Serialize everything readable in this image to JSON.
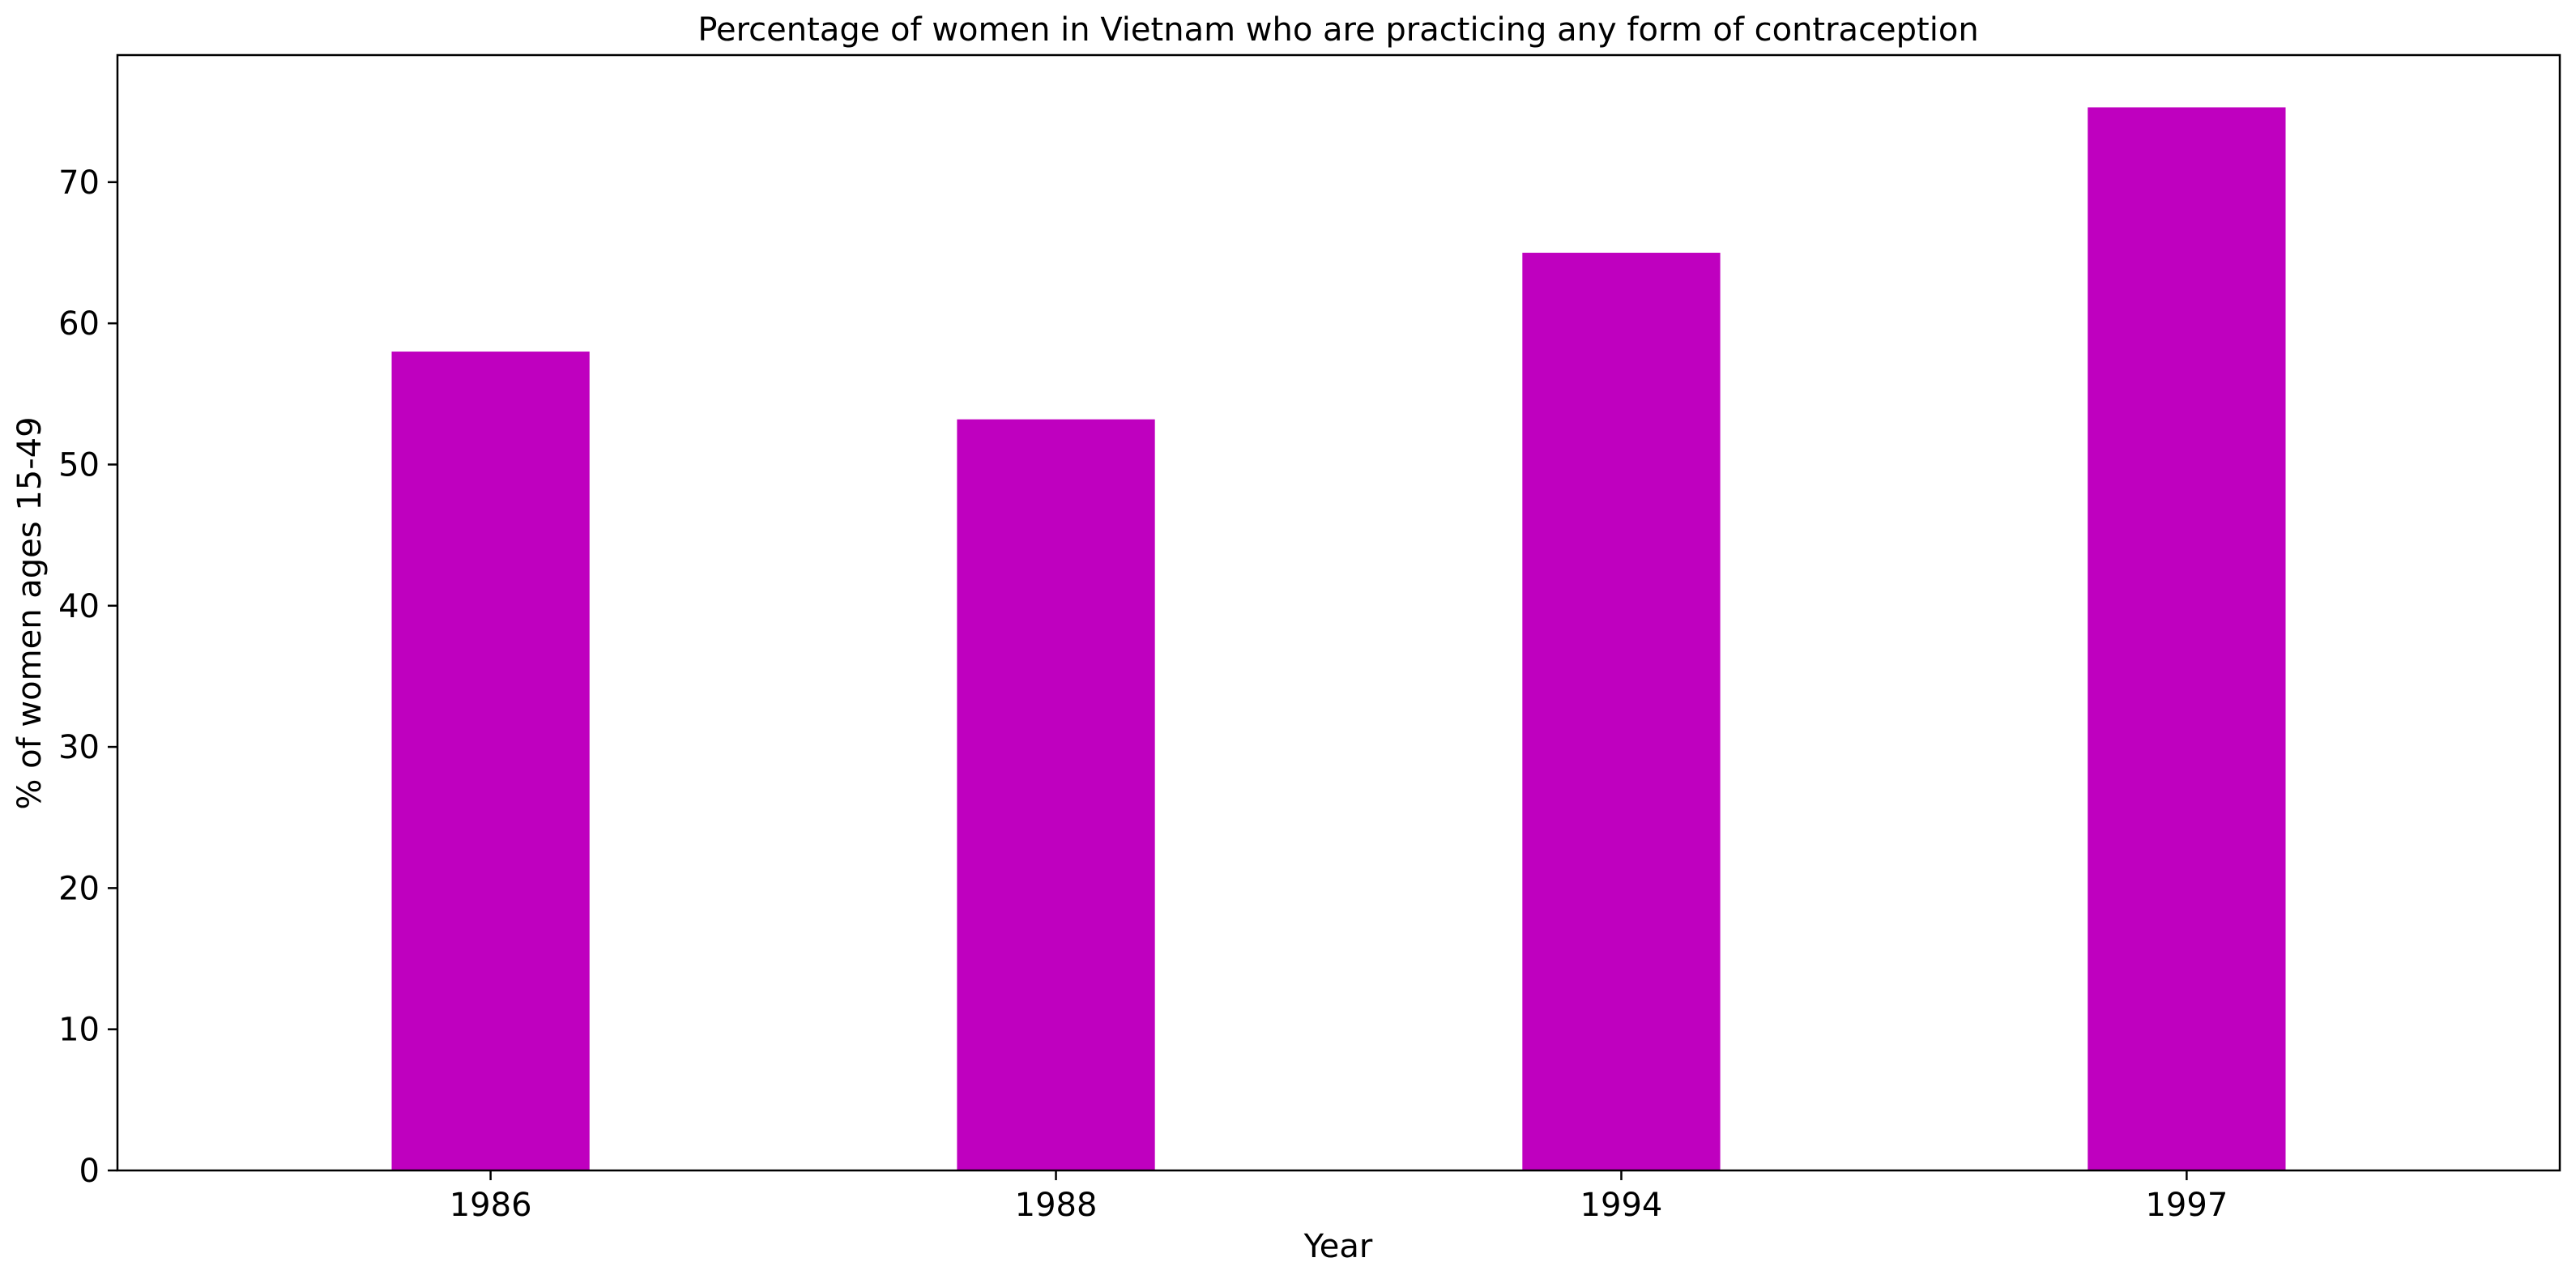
{
  "chart_data": {
    "type": "bar",
    "title": "Percentage of women in Vietnam who are practicing any form of contraception",
    "xlabel": "Year",
    "ylabel": "% of women ages 15-49",
    "categories": [
      "1986",
      "1988",
      "1994",
      "1997"
    ],
    "values": [
      58.0,
      53.2,
      65.0,
      75.3
    ],
    "ylim": [
      0,
      79
    ],
    "yticks": [
      0,
      10,
      20,
      30,
      40,
      50,
      60,
      70
    ],
    "bar_color": "#bf00bf",
    "grid": false,
    "legend": "none"
  }
}
